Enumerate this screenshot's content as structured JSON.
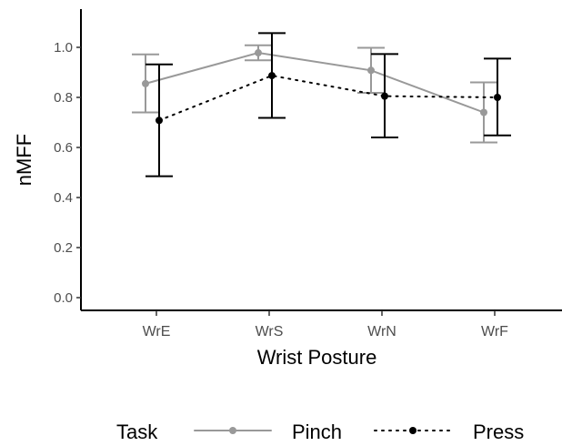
{
  "chart_data": {
    "type": "line",
    "title": "",
    "xlabel": "Wrist Posture",
    "ylabel": "nMFF",
    "categories": [
      "WrE",
      "WrS",
      "WrN",
      "WrF"
    ],
    "ylim": [
      0,
      1.1
    ],
    "yticks": [
      0.0,
      0.2,
      0.4,
      0.6,
      0.8,
      1.0
    ],
    "ytick_labels": [
      "0.0",
      "0.2",
      "0.4",
      "0.6",
      "0.8",
      "1.0"
    ],
    "grid": false,
    "legend": {
      "title": "Task",
      "placement": "bottom"
    },
    "series": [
      {
        "name": "Pinch",
        "color": "#999999",
        "line_style": "solid",
        "values": [
          0.855,
          0.978,
          0.908,
          0.74
        ],
        "error_low": [
          0.74,
          0.948,
          0.818,
          0.62
        ],
        "error_high": [
          0.972,
          1.008,
          0.998,
          0.86
        ]
      },
      {
        "name": "Press",
        "color": "#000000",
        "line_style": "dotted",
        "values": [
          0.708,
          0.887,
          0.805,
          0.8
        ],
        "error_low": [
          0.485,
          0.718,
          0.64,
          0.648
        ],
        "error_high": [
          0.932,
          1.057,
          0.973,
          0.955
        ]
      }
    ]
  }
}
